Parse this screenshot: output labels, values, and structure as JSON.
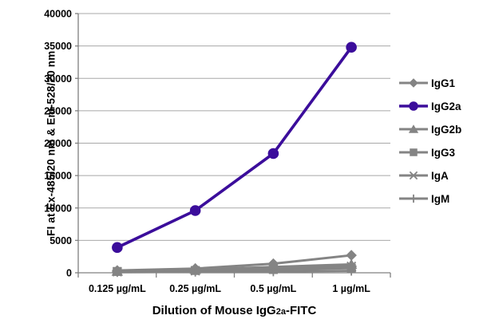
{
  "colors": {
    "accent_purple": "#3b0d9b",
    "series_gray": "#848484",
    "axis": "#808080",
    "grid": "#a8a8a8",
    "text": "#000000"
  },
  "chart_data": {
    "type": "line",
    "title": "",
    "xlabel": "Dilution of Mouse IgG2a-FITC",
    "xlabel_parts": [
      "Dilution of Mouse IgG",
      "2a",
      "-FITC"
    ],
    "ylabel": "FI at Ex-485/20 nm & Em-528/20 nm",
    "categories": [
      "0.125 µg/mL",
      "0.25 µg/mL",
      "0.5 µg/mL",
      "1 µg/mL"
    ],
    "y_tick_labels": [
      "0",
      "5000",
      "10000",
      "15000",
      "20000",
      "25000",
      "30000",
      "35000",
      "40000"
    ],
    "ylim": [
      0,
      40000
    ],
    "y_step": 5000,
    "grid": true,
    "legend_position": "right",
    "series": [
      {
        "name": "IgG1",
        "marker": "diamond",
        "color": "#848484",
        "values": [
          350,
          650,
          1400,
          2700
        ]
      },
      {
        "name": "IgG2a",
        "marker": "circle",
        "color": "#3b0d9b",
        "values": [
          3900,
          9600,
          18400,
          34800
        ]
      },
      {
        "name": "IgG2b",
        "marker": "triangle",
        "color": "#848484",
        "values": [
          250,
          500,
          900,
          1300
        ]
      },
      {
        "name": "IgG3",
        "marker": "square",
        "color": "#848484",
        "values": [
          200,
          350,
          500,
          700
        ]
      },
      {
        "name": "IgA",
        "marker": "asterisk",
        "color": "#848484",
        "values": [
          150,
          300,
          600,
          1000
        ]
      },
      {
        "name": "IgM",
        "marker": "plus",
        "color": "#848484",
        "values": [
          100,
          150,
          200,
          300
        ]
      }
    ]
  }
}
